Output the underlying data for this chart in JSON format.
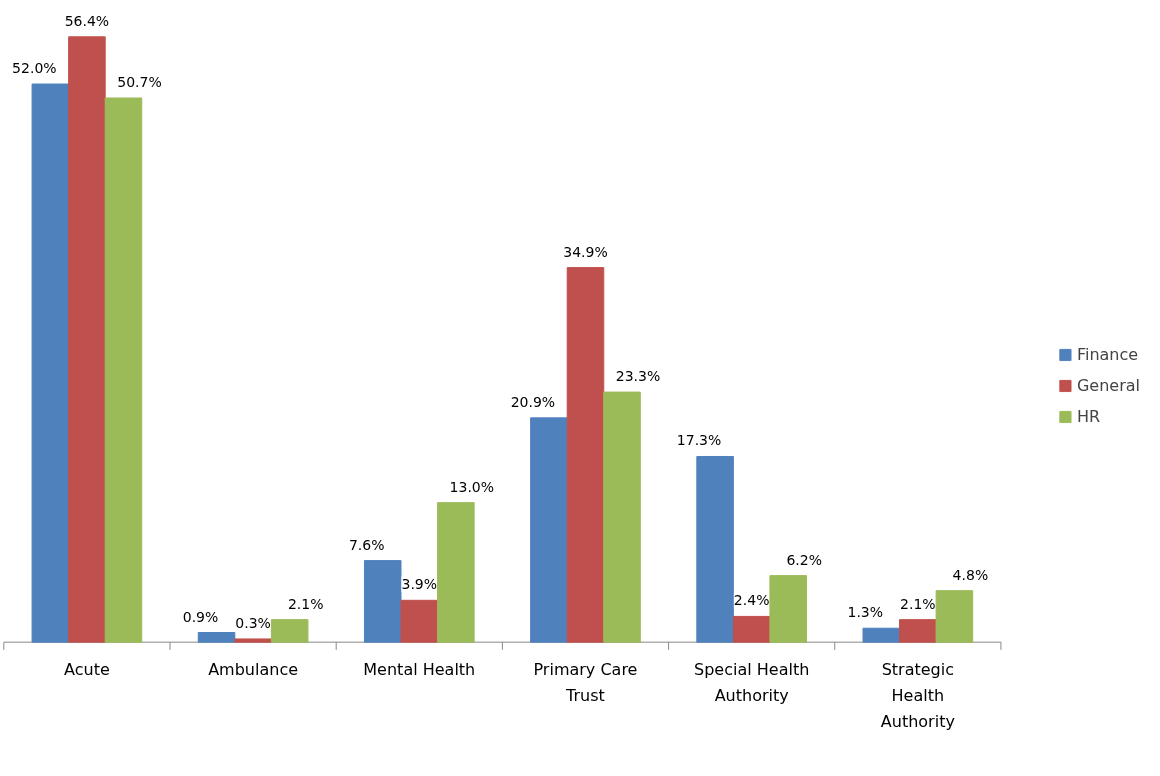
{
  "chart_data": {
    "type": "bar",
    "categories": [
      "Acute",
      "Ambulance",
      "Mental Health",
      "Primary Care Trust",
      "Special Health Authority",
      "Strategic Health Authority"
    ],
    "series": [
      {
        "name": "Finance",
        "color": "#4f81bd",
        "values": [
          52.0,
          0.9,
          7.6,
          20.9,
          17.3,
          1.3
        ],
        "value_labels": [
          "52.0%",
          "0.9%",
          "7.6%",
          "20.9%",
          "17.3%",
          "1.3%"
        ]
      },
      {
        "name": "General",
        "color": "#c0504d",
        "values": [
          56.4,
          0.3,
          3.9,
          34.9,
          2.4,
          2.1
        ],
        "value_labels": [
          "56.4%",
          "0.3%",
          "3.9%",
          "34.9%",
          "2.4%",
          "2.1%"
        ]
      },
      {
        "name": "HR",
        "color": "#9bbb59",
        "values": [
          50.7,
          2.1,
          13.0,
          23.3,
          6.2,
          4.8
        ],
        "value_labels": [
          "50.7%",
          "2.1%",
          "13.0%",
          "23.3%",
          "6.2%",
          "4.8%"
        ]
      }
    ],
    "legend": "right",
    "grid": false
  }
}
